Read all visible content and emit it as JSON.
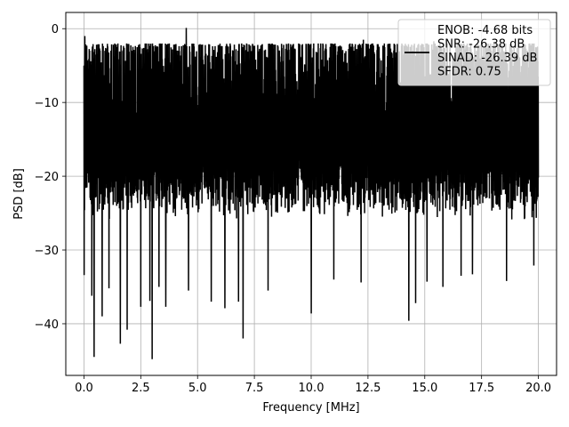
{
  "chart_data": {
    "type": "line",
    "title": "",
    "xlabel": "Frequency [MHz]",
    "ylabel": "PSD [dB]",
    "xlim": [
      -0.8,
      20.8
    ],
    "ylim": [
      -47,
      2.2
    ],
    "xticks": [
      0.0,
      2.5,
      5.0,
      7.5,
      10.0,
      12.5,
      15.0,
      17.5,
      20.0
    ],
    "xtick_labels": [
      "0.0",
      "2.5",
      "5.0",
      "7.5",
      "10.0",
      "12.5",
      "15.0",
      "17.5",
      "20.0"
    ],
    "yticks": [
      0,
      -10,
      -20,
      -30,
      -40
    ],
    "ytick_labels": [
      "0",
      "−10",
      "−20",
      "−30",
      "−40"
    ],
    "grid": true,
    "legend_position": "top-right",
    "series": [
      {
        "name": "ENOB: -4.68 bits\nSNR: -26.38 dB\nSINAD: -26.39 dB\nSFDR: 0.75",
        "color": "#000000",
        "x_start": 0.0,
        "x_end": 20.0,
        "typical_band": [
          -22,
          -5
        ],
        "peaks": [
          [
            0.0,
            -5.0
          ],
          [
            0.04,
            -1.0
          ],
          [
            4.5,
            0.1
          ],
          [
            12.3,
            -1.5
          ],
          [
            15.4,
            -1.7
          ],
          [
            17.2,
            -2.3
          ],
          [
            18.4,
            -2.5
          ]
        ],
        "dips": [
          [
            0.0,
            -33.4
          ],
          [
            0.35,
            -36.2
          ],
          [
            0.45,
            -44.5
          ],
          [
            0.8,
            -39.0
          ],
          [
            1.1,
            -35.2
          ],
          [
            1.6,
            -42.7
          ],
          [
            1.9,
            -40.8
          ],
          [
            2.5,
            -37.7
          ],
          [
            2.9,
            -36.9
          ],
          [
            3.0,
            -44.8
          ],
          [
            3.3,
            -35.0
          ],
          [
            3.6,
            -37.7
          ],
          [
            4.6,
            -35.5
          ],
          [
            5.6,
            -37.0
          ],
          [
            6.2,
            -37.9
          ],
          [
            6.8,
            -37.0
          ],
          [
            7.0,
            -42.0
          ],
          [
            8.1,
            -35.5
          ],
          [
            10.0,
            -38.6
          ],
          [
            11.0,
            -34.0
          ],
          [
            12.2,
            -34.4
          ],
          [
            14.3,
            -39.6
          ],
          [
            14.6,
            -37.2
          ],
          [
            15.1,
            -34.3
          ],
          [
            15.8,
            -35.0
          ],
          [
            16.6,
            -33.5
          ],
          [
            17.1,
            -33.3
          ],
          [
            18.6,
            -34.2
          ],
          [
            19.8,
            -32.1
          ]
        ]
      }
    ]
  }
}
